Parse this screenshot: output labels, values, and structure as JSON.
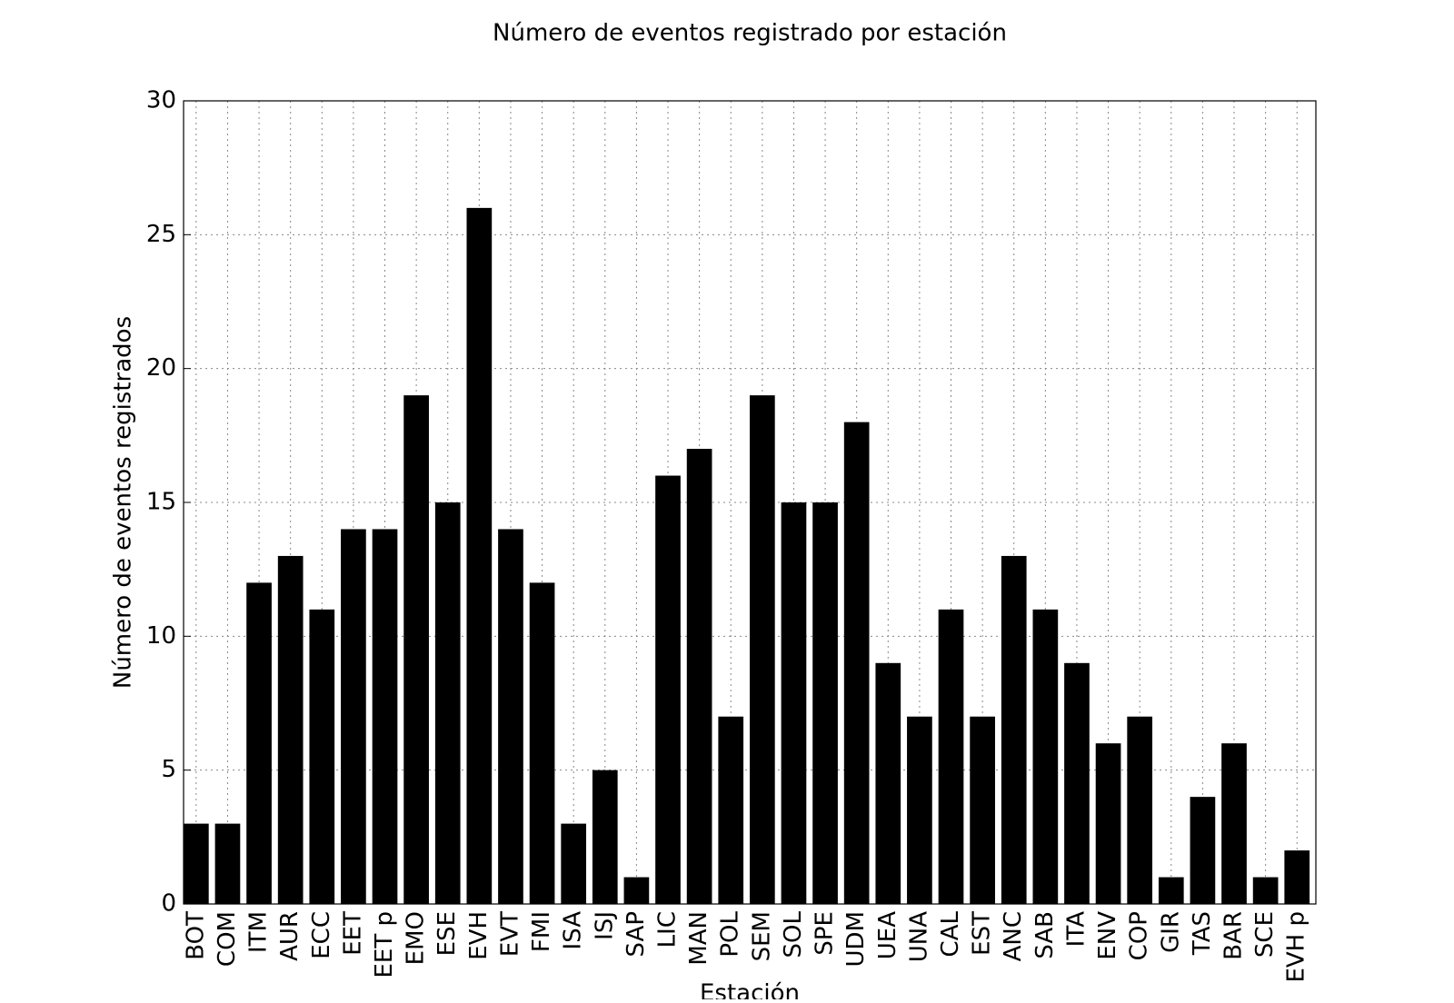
{
  "chart_data": {
    "type": "bar",
    "title": "Número de eventos registrado por estación",
    "xlabel": "Estación",
    "ylabel": "Número de eventos registrados",
    "categories": [
      "BOT",
      "COM",
      "ITM",
      "AUR",
      "ECC",
      "EET",
      "EET p",
      "EMO",
      "ESE",
      "EVH",
      "EVT",
      "FMI",
      "ISA",
      "ISJ",
      "SAP",
      "LIC",
      "MAN",
      "POL",
      "SEM",
      "SOL",
      "SPE",
      "UDM",
      "UEA",
      "UNA",
      "CAL",
      "EST",
      "ANC",
      "SAB",
      "ITA",
      "ENV",
      "COP",
      "GIR",
      "TAS",
      "BAR",
      "SCE",
      "EVH p"
    ],
    "values": [
      3,
      3,
      12,
      13,
      11,
      14,
      14,
      19,
      15,
      26,
      14,
      12,
      3,
      5,
      1,
      16,
      17,
      7,
      19,
      15,
      15,
      18,
      9,
      7,
      11,
      7,
      13,
      11,
      9,
      6,
      7,
      1,
      4,
      6,
      1,
      2
    ],
    "color": "#000000",
    "ylim": [
      0,
      30
    ],
    "yticks": [
      0,
      5,
      10,
      15,
      20,
      25,
      30
    ],
    "grid": true
  }
}
